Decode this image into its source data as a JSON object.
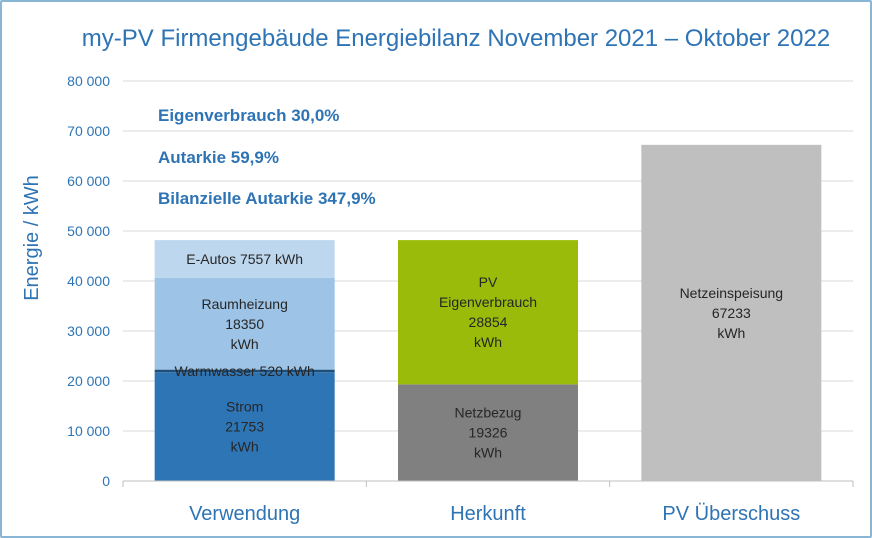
{
  "chart_data": {
    "type": "bar",
    "stacked": true,
    "title": "my-PV Firmengebäude Energiebilanz November 2021 – Oktober 2022",
    "ylabel": "Energie / kWh",
    "xlabel": "",
    "ylim": [
      0,
      80000
    ],
    "yticks": [
      0,
      10000,
      20000,
      30000,
      40000,
      50000,
      60000,
      70000,
      80000
    ],
    "ytick_labels": [
      "0",
      "10 000",
      "20 000",
      "30 000",
      "40 000",
      "50 000",
      "60 000",
      "70 000",
      "80 000"
    ],
    "grid": true,
    "categories": [
      "Verwendung",
      "Herkunft",
      "PV Überschuss"
    ],
    "annotations": [
      "Eigenverbrauch 30,0%",
      "Autarkie 59,9%",
      "Bilanzielle Autarkie 347,9%"
    ],
    "bars": [
      {
        "category": "Verwendung",
        "segments": [
          {
            "value": 21753,
            "color": "#2e75b6",
            "label_lines": [
              "Strom",
              "21753",
              "kWh"
            ]
          },
          {
            "value": 520,
            "color": "#1f4e79",
            "label_lines": [
              "Warmwasser 520  kWh"
            ]
          },
          {
            "value": 18350,
            "color": "#9dc3e6",
            "label_lines": [
              "Raumheizung",
              "18350",
              "kWh"
            ]
          },
          {
            "value": 7557,
            "color": "#bdd7ee",
            "label_lines": [
              "E-Autos 7557  kWh"
            ]
          }
        ]
      },
      {
        "category": "Herkunft",
        "segments": [
          {
            "value": 19326,
            "color": "#808080",
            "label_lines": [
              "Netzbezug",
              "19326",
              "kWh"
            ]
          },
          {
            "value": 28854,
            "color": "#9bbb0a",
            "label_lines": [
              "PV",
              "Eigenverbrauch",
              "28854",
              "kWh"
            ]
          }
        ]
      },
      {
        "category": "PV Überschuss",
        "segments": [
          {
            "value": 67233,
            "color": "#bfbfbf",
            "label_lines": [
              "Netzeinspeisung",
              "67233",
              "kWh"
            ]
          }
        ]
      }
    ]
  }
}
